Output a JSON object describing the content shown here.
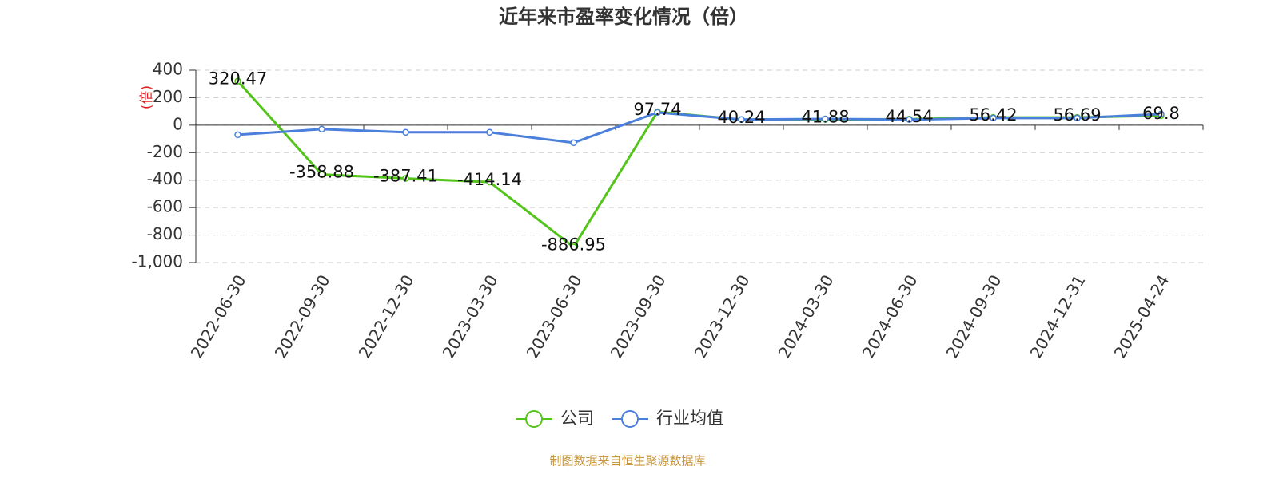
{
  "chart_data": {
    "type": "line",
    "title": "近年来市盈率变化情况（倍）",
    "y_label": "(倍)",
    "source": "制图数据来自恒生聚源数据库",
    "categories": [
      "2022-06-30",
      "2022-09-30",
      "2022-12-30",
      "2023-03-30",
      "2023-06-30",
      "2023-09-30",
      "2023-12-30",
      "2024-03-30",
      "2024-06-30",
      "2024-09-30",
      "2024-12-31",
      "2025-04-24"
    ],
    "series": [
      {
        "name": "公司",
        "color": "#52c41a",
        "values": [
          320.47,
          -358.88,
          -387.41,
          -414.14,
          -886.95,
          97.74,
          40.24,
          41.88,
          44.54,
          56.42,
          56.69,
          69.8
        ],
        "labels": true
      },
      {
        "name": "行业均值",
        "color": "#4a7fdc",
        "values": [
          -70,
          -29,
          -52,
          -52,
          -128,
          93,
          41,
          46,
          41,
          52,
          52,
          81
        ]
      }
    ],
    "ylim": [
      -1000,
      400
    ],
    "yticks": [
      {
        "value": -1000,
        "label": "-1,000"
      },
      -800,
      -600,
      -400,
      -200,
      0,
      200,
      400
    ],
    "grid": true
  }
}
